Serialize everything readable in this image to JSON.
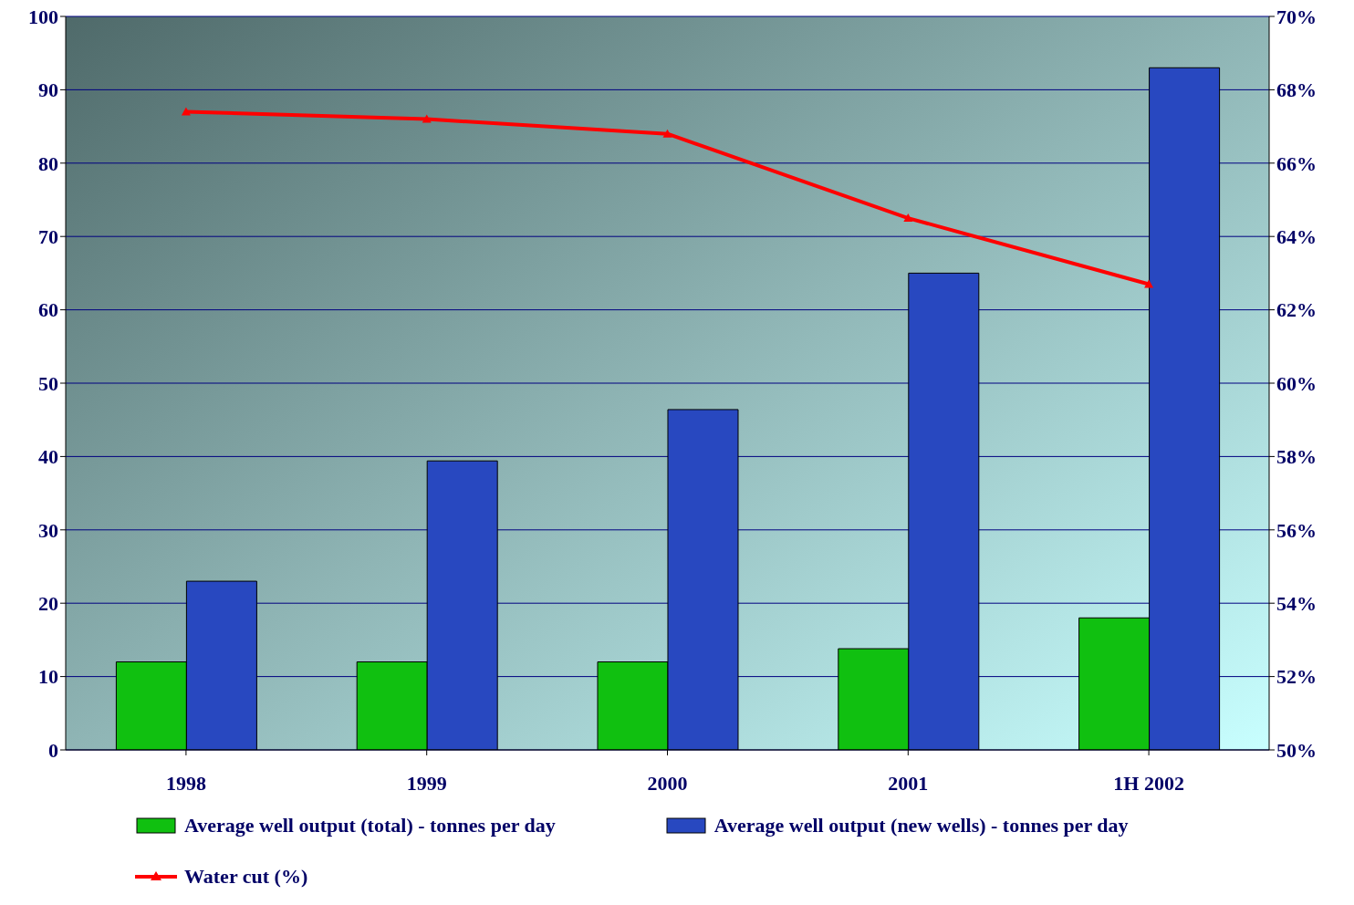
{
  "chart_data": {
    "type": "bar",
    "categories": [
      "1998",
      "1999",
      "2000",
      "2001",
      "1H 2002"
    ],
    "series": [
      {
        "name": "Average well output (total) - tonnes per day",
        "color": "#10c010",
        "values": [
          12,
          12,
          12,
          13.8,
          18
        ]
      },
      {
        "name": "Average well output (new wells) - tonnes per day",
        "color": "#2848c0",
        "values": [
          23,
          39.4,
          46.4,
          65,
          93
        ]
      },
      {
        "name": "Water cut (%)",
        "type": "line",
        "axis": "y2",
        "color": "#ff0000",
        "marker": "triangle",
        "values": [
          67.4,
          67.2,
          66.8,
          64.5,
          62.7
        ]
      }
    ],
    "ylim": [
      0,
      100
    ],
    "yticks": [
      0,
      10,
      20,
      30,
      40,
      50,
      60,
      70,
      80,
      90,
      100
    ],
    "y2lim": [
      50,
      70
    ],
    "y2ticks": [
      {
        "value": 50,
        "label": "50%"
      },
      {
        "value": 52,
        "label": "52%"
      },
      {
        "value": 54,
        "label": "54%"
      },
      {
        "value": 56,
        "label": "56%"
      },
      {
        "value": 58,
        "label": "58%"
      },
      {
        "value": 60,
        "label": "60%"
      },
      {
        "value": 62,
        "label": "62%"
      },
      {
        "value": 64,
        "label": "64%"
      },
      {
        "value": 66,
        "label": "66%"
      },
      {
        "value": 68,
        "label": "68%"
      },
      {
        "value": 70,
        "label": "70%"
      }
    ],
    "grid": "y",
    "legend": "bottom"
  }
}
